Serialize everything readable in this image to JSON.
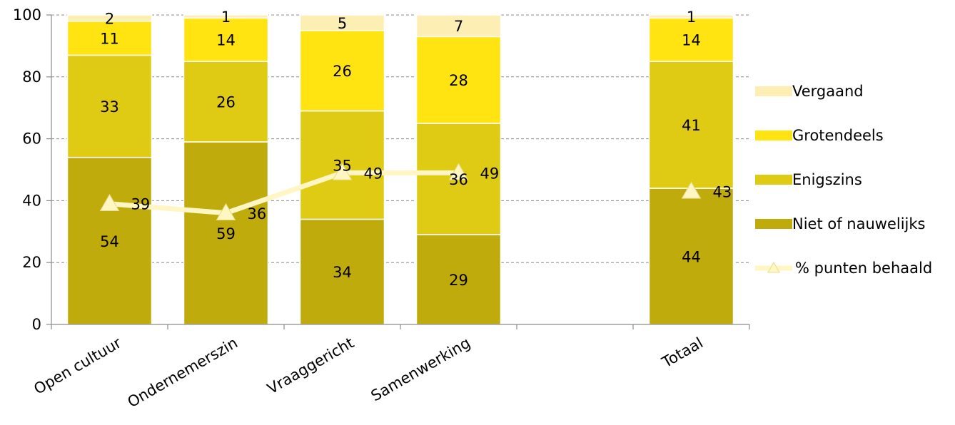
{
  "chart_data": {
    "type": "bar",
    "stacked": true,
    "categories": [
      "Open cultuur",
      "Ondernemerszin",
      "Vraaggericht",
      "Samenwerking",
      "",
      "Totaal"
    ],
    "ylim": [
      0,
      100
    ],
    "yticks": [
      0,
      20,
      40,
      60,
      80,
      100
    ],
    "grid": true,
    "legend_position": "right",
    "title": "",
    "xlabel": "",
    "ylabel": "",
    "series": [
      {
        "name": "Niet of nauwelijks",
        "color": "#c0ab0c",
        "values": [
          54,
          59,
          34,
          29,
          null,
          44
        ]
      },
      {
        "name": "Enigszins",
        "color": "#e0cb14",
        "values": [
          33,
          26,
          35,
          36,
          null,
          41
        ]
      },
      {
        "name": "Grotendeels",
        "color": "#ffe412",
        "values": [
          11,
          14,
          26,
          28,
          null,
          14
        ]
      },
      {
        "name": "Vergaand",
        "color": "#fdeeb4",
        "values": [
          2,
          1,
          5,
          7,
          null,
          1
        ]
      }
    ],
    "line_series": {
      "name": "% punten behaald",
      "color": "#fff6c4",
      "marker": "triangle",
      "values": [
        39,
        36,
        49,
        49,
        null,
        43
      ]
    }
  }
}
